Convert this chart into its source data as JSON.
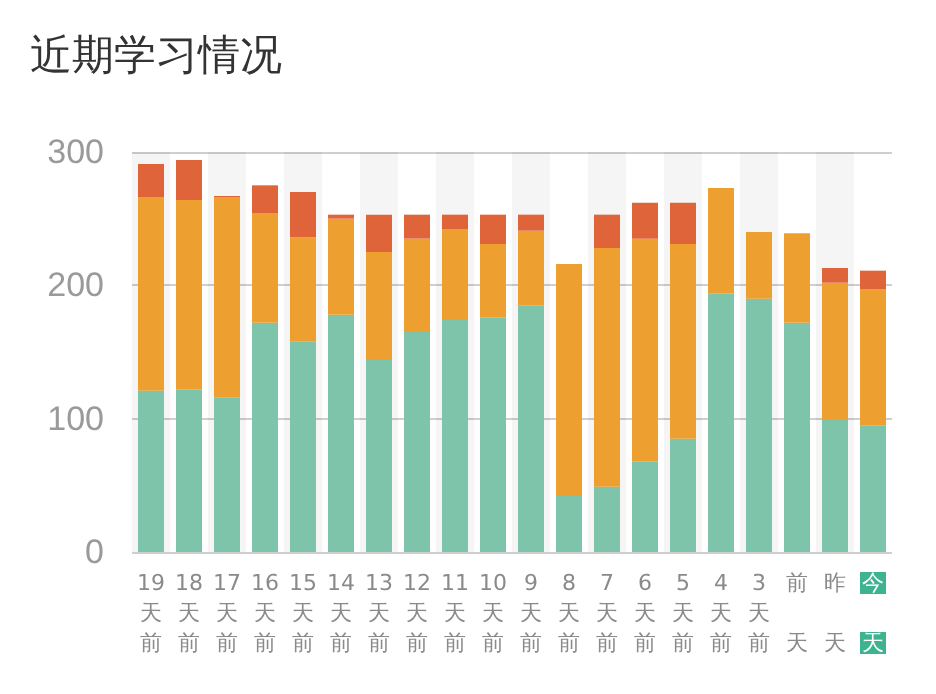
{
  "chart_data": {
    "type": "bar",
    "title": "近期学习情况",
    "stacked": true,
    "categories": [
      "19天前",
      "18天前",
      "17天前",
      "16天前",
      "15天前",
      "14天前",
      "13天前",
      "12天前",
      "11天前",
      "10天前",
      "9天前",
      "8天前",
      "7天前",
      "6天前",
      "5天前",
      "4天前",
      "3天前",
      "前天",
      "昨天",
      "今天"
    ],
    "series": [
      {
        "color": "#7dc4aa",
        "values": [
          121,
          122,
          116,
          172,
          158,
          178,
          144,
          165,
          174,
          176,
          185,
          42,
          49,
          68,
          85,
          194,
          190,
          172,
          99,
          95
        ]
      },
      {
        "color": "#eda030",
        "values": [
          145,
          142,
          150,
          82,
          78,
          72,
          81,
          70,
          68,
          55,
          56,
          174,
          179,
          167,
          146,
          79,
          50,
          67,
          103,
          102
        ]
      },
      {
        "color": "#e0643a",
        "values": [
          25,
          30,
          1,
          21,
          34,
          3,
          28,
          18,
          11,
          22,
          12,
          0,
          25,
          27,
          31,
          0,
          0,
          0,
          11,
          14
        ]
      }
    ],
    "ylim": [
      0,
      300
    ],
    "yticks": [
      0,
      100,
      200,
      300
    ],
    "grid": "y"
  }
}
